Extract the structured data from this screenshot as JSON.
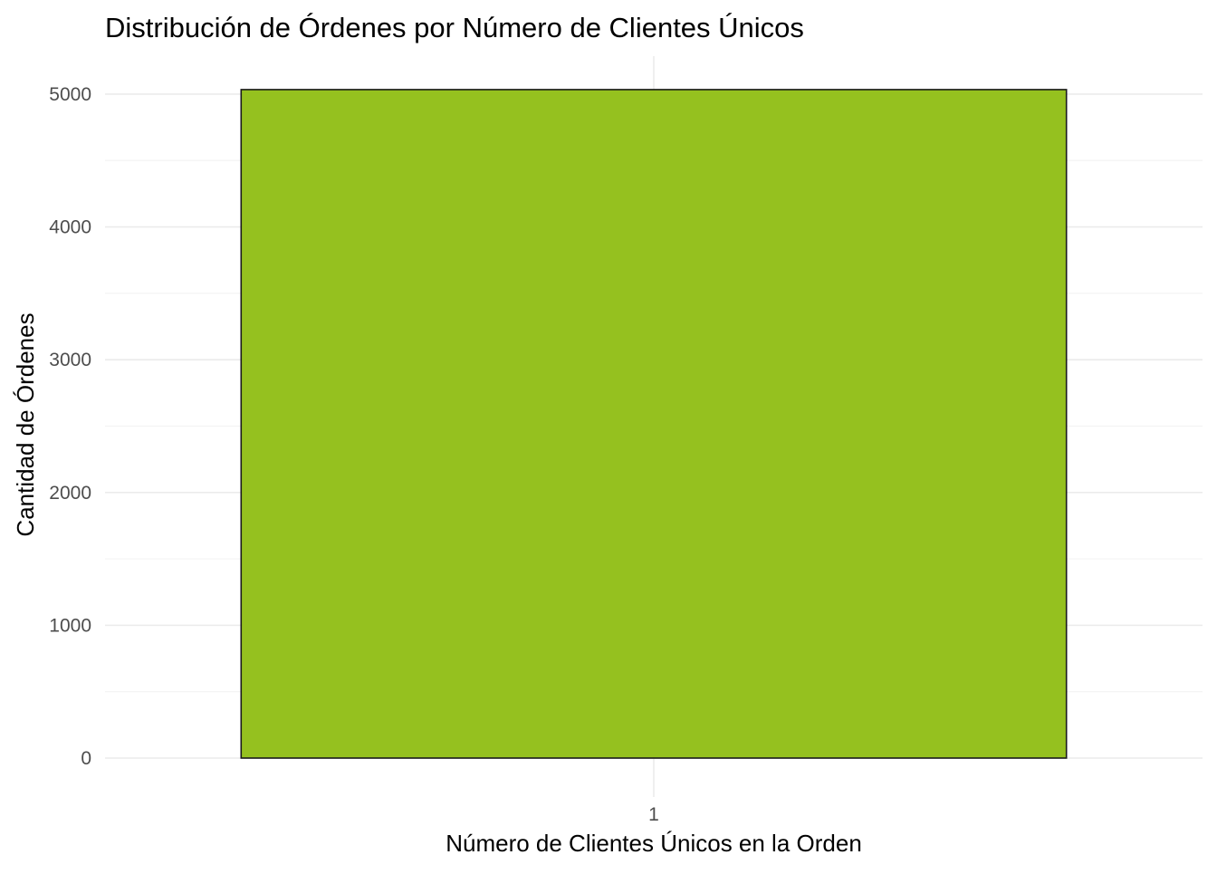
{
  "chart_data": {
    "type": "bar",
    "title": "Distribución de Órdenes por Número de Clientes Únicos",
    "xlabel": "Número de Clientes Únicos en la Orden",
    "ylabel": "Cantidad de Órdenes",
    "categories": [
      "1"
    ],
    "values": [
      5034
    ],
    "ylim": [
      0,
      5200
    ],
    "yticks": [
      0,
      1000,
      2000,
      3000,
      4000,
      5000
    ],
    "yminor": [
      500,
      1500,
      2500,
      3500,
      4500
    ],
    "bar_fill": "#95C11F",
    "bar_stroke": "#1a1a1a",
    "grid": true,
    "legend": "none"
  }
}
